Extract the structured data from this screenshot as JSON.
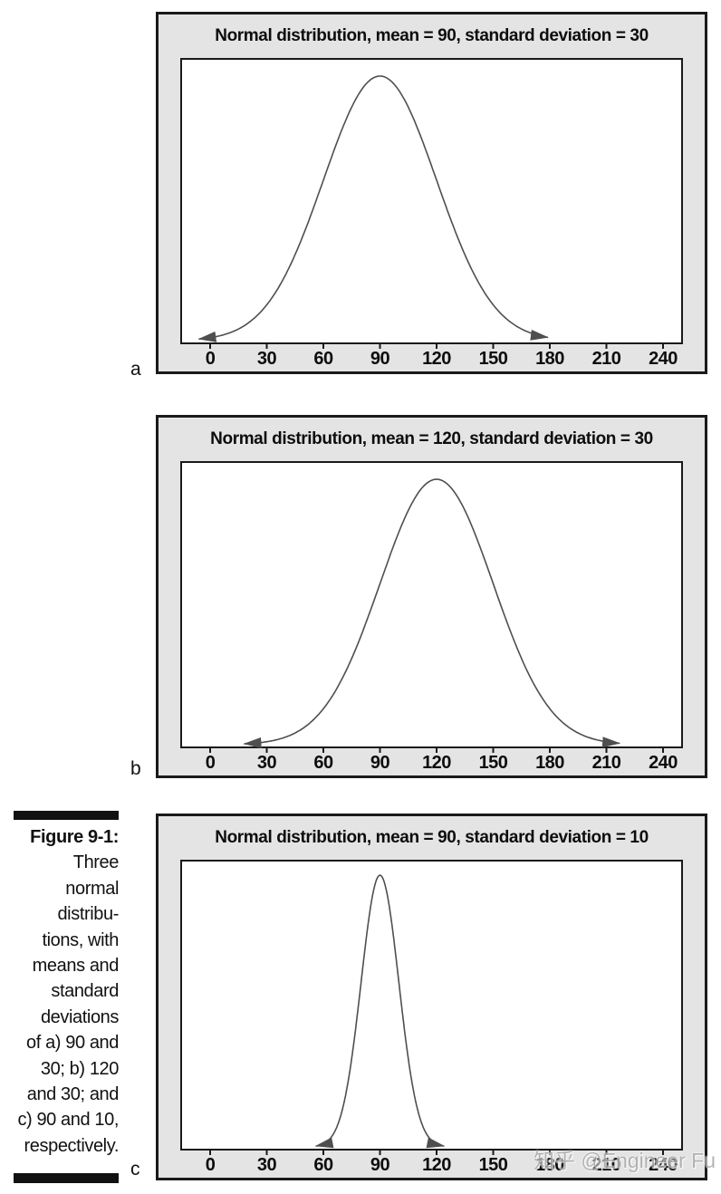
{
  "figure": {
    "caption": {
      "label": "Figure 9-1:",
      "lines": [
        "Three",
        "normal",
        "distribu-",
        "tions, with",
        "means and",
        "standard",
        "deviations",
        "of a) 90 and",
        "30; b) 120",
        "and 30; and",
        "c) 90 and 10,",
        "respectively."
      ]
    },
    "panel_labels": [
      "a",
      "b",
      "c"
    ]
  },
  "watermark": "知乎 @Engineer Fu",
  "colors": {
    "panel_background": "#e4e4e4",
    "panel_border": "#1a1a1a",
    "plot_background": "#ffffff",
    "curve": "#4f4f4f",
    "text": "#111111",
    "watermark": "#a9a9a9"
  },
  "chart_data": [
    {
      "type": "line",
      "curve": "normal-distribution",
      "title": "Normal distribution, mean = 90, standard deviation = 30",
      "mean": 90,
      "sd": 30,
      "x_ticks": [
        0,
        30,
        60,
        90,
        120,
        150,
        180,
        210,
        240
      ],
      "xlim": [
        -15,
        250
      ],
      "curve_x_start": -6,
      "curve_x_end": 179,
      "peak_fraction": 0.93,
      "arrow_ends": true,
      "grid": false,
      "panel_label": "a"
    },
    {
      "type": "line",
      "curve": "normal-distribution",
      "title": "Normal distribution, mean = 120, standard deviation = 30",
      "mean": 120,
      "sd": 30,
      "x_ticks": [
        0,
        30,
        60,
        90,
        120,
        150,
        180,
        210,
        240
      ],
      "xlim": [
        -15,
        250
      ],
      "curve_x_start": 18,
      "curve_x_end": 217,
      "peak_fraction": 0.93,
      "arrow_ends": true,
      "grid": false,
      "panel_label": "b"
    },
    {
      "type": "line",
      "curve": "normal-distribution",
      "title": "Normal distribution, mean = 90, standard deviation = 10",
      "mean": 90,
      "sd": 10,
      "x_ticks": [
        0,
        30,
        60,
        90,
        120,
        150,
        180,
        210,
        240
      ],
      "xlim": [
        -15,
        250
      ],
      "curve_x_start": 56,
      "curve_x_end": 124,
      "peak_fraction": 0.94,
      "arrow_ends": true,
      "grid": false,
      "panel_label": "c"
    }
  ]
}
